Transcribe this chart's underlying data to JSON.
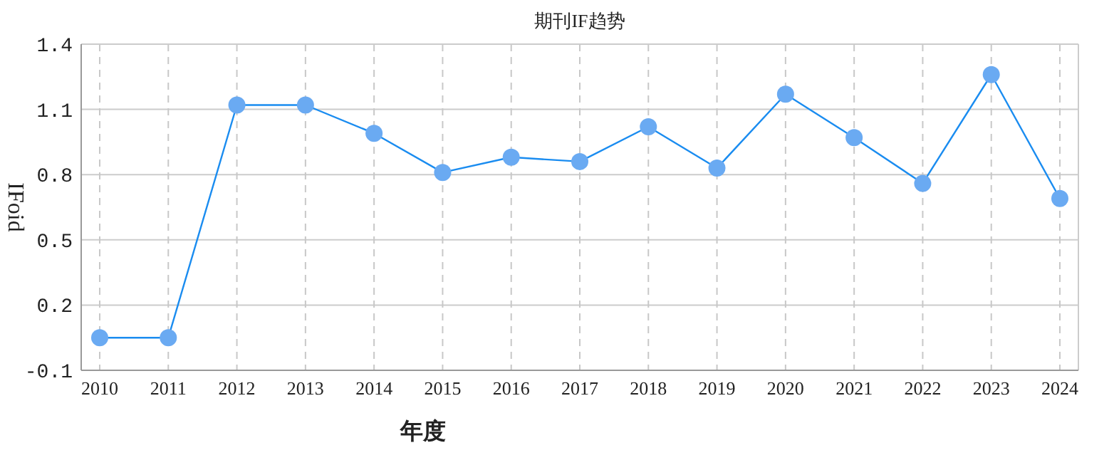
{
  "chart_data": {
    "type": "line",
    "title": "期刊IF趋势",
    "xlabel": "年度",
    "ylabel": "IFoid",
    "categories": [
      "2010",
      "2011",
      "2012",
      "2013",
      "2014",
      "2015",
      "2016",
      "2017",
      "2018",
      "2019",
      "2020",
      "2021",
      "2022",
      "2023",
      "2024"
    ],
    "series": [
      {
        "color": "#1a8cf0",
        "values": [
          0.05,
          0.05,
          1.12,
          1.12,
          0.99,
          0.81,
          0.88,
          0.86,
          1.02,
          0.83,
          1.17,
          0.97,
          0.76,
          1.26,
          0.69
        ]
      }
    ],
    "ylim": [
      -0.1,
      1.4
    ],
    "yticks": [
      -0.1,
      0.2,
      0.5,
      0.8,
      1.1,
      1.4
    ],
    "grid": true,
    "marker": "circle",
    "line_style": "solid"
  }
}
